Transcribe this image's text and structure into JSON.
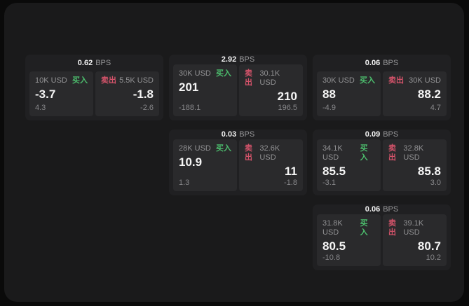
{
  "labels": {
    "buy": "买入",
    "sell": "卖出",
    "bps_unit": "BPS"
  },
  "colors": {
    "buy_accent": "#4cbd6d",
    "sell_accent": "#d4536a",
    "page_background": "#0a0a0a",
    "panel_background": "#1a1a1b",
    "card_background": "#202022",
    "side_panel_background": "#2a2a2c"
  },
  "cards": [
    {
      "bps": "0.62",
      "buy": {
        "amount": "10K USD",
        "value": "-3.7",
        "delta": "4.3"
      },
      "sell": {
        "amount": "5.5K USD",
        "value": "-1.8",
        "delta": "-2.6"
      }
    },
    {
      "bps": "2.92",
      "buy": {
        "amount": "30K USD",
        "value": "201",
        "delta": "-188.1"
      },
      "sell": {
        "amount": "30.1K USD",
        "value": "210",
        "delta": "196.5"
      }
    },
    {
      "bps": "0.06",
      "buy": {
        "amount": "30K USD",
        "value": "88",
        "delta": "-4.9"
      },
      "sell": {
        "amount": "30K USD",
        "value": "88.2",
        "delta": "4.7"
      }
    },
    {
      "bps": "0.03",
      "buy": {
        "amount": "28K USD",
        "value": "10.9",
        "delta": "1.3"
      },
      "sell": {
        "amount": "32.6K USD",
        "value": "11",
        "delta": "-1.8"
      }
    },
    {
      "bps": "0.09",
      "buy": {
        "amount": "34.1K USD",
        "value": "85.5",
        "delta": "-3.1"
      },
      "sell": {
        "amount": "32.8K USD",
        "value": "85.8",
        "delta": "3.0"
      }
    },
    {
      "bps": "0.06",
      "buy": {
        "amount": "31.8K USD",
        "value": "80.5",
        "delta": "-10.8"
      },
      "sell": {
        "amount": "39.1K USD",
        "value": "80.7",
        "delta": "10.2"
      }
    }
  ]
}
